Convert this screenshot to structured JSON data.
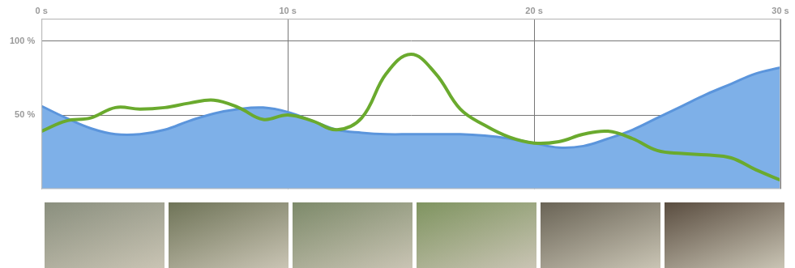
{
  "chart_data": {
    "type": "line",
    "xlim": [
      0,
      30
    ],
    "xticks": [
      {
        "value": 0,
        "label": "0 s"
      },
      {
        "value": 10,
        "label": "10 s"
      },
      {
        "value": 20,
        "label": "20 s"
      },
      {
        "value": 30,
        "label": "30 s"
      }
    ],
    "ylim": [
      0,
      115
    ],
    "yticks": [
      {
        "value": 50,
        "label": "50 %"
      },
      {
        "value": 100,
        "label": "100 %"
      }
    ],
    "grid": true,
    "x": [
      0,
      1,
      2,
      3,
      4,
      5,
      6,
      7,
      8,
      9,
      10,
      11,
      12,
      13,
      14,
      15,
      16,
      17,
      18,
      19,
      20,
      21,
      22,
      23,
      24,
      25,
      26,
      27,
      28,
      29,
      30
    ],
    "series": [
      {
        "type": "area",
        "color": "#7eb0e8",
        "values": [
          56,
          48,
          41,
          37,
          37,
          40,
          46,
          51,
          54,
          55,
          52,
          46,
          40,
          38,
          37,
          37,
          37,
          37,
          36,
          34,
          31,
          28,
          29,
          34,
          40,
          48,
          56,
          64,
          71,
          78,
          82
        ]
      },
      {
        "type": "line",
        "color": "#6aaa2e",
        "values": [
          39,
          46,
          48,
          55,
          54,
          55,
          58,
          60,
          55,
          47,
          50,
          46,
          40,
          48,
          78,
          91,
          78,
          54,
          43,
          35,
          31,
          32,
          37,
          39,
          34,
          26,
          24,
          23,
          21,
          13,
          6
        ]
      }
    ]
  }
}
